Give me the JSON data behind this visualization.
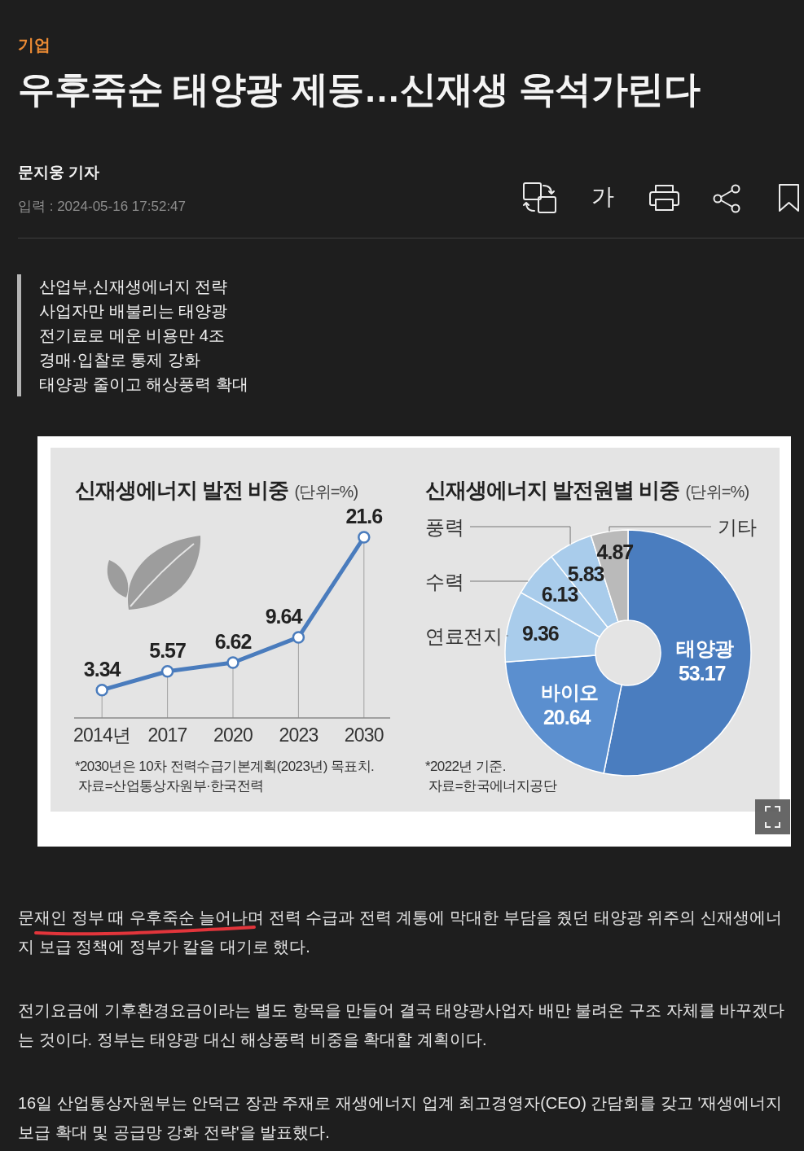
{
  "chart_data": [
    {
      "type": "other",
      "title": "우후죽순 태양광 제동…신재생 옥석가린다",
      "annotations": [
        "기업",
        "문지웅 기자",
        "입력 : 2024-05-16 17:52:47",
        "가"
      ]
    },
    {
      "type": "other",
      "annotations": [
        "산업부,신재생에너지 전략",
        "사업자만 배불리는 태양광",
        "전기료로 메운 비용만 4조",
        "경매·입찰로 통제 강화",
        "태양광 줄이고 해상풍력 확대"
      ]
    },
    {
      "type": "line",
      "title": "신재생에너지 발전 비중",
      "subtitle": "(단위=%)",
      "categories": [
        "2014년",
        "2017",
        "2020",
        "2023",
        "2030"
      ],
      "values": [
        3.34,
        5.57,
        6.62,
        9.64,
        21.6
      ],
      "color": "#4a7cbd",
      "marker": "circle",
      "data_labels": true,
      "grid": "x",
      "annotations": [
        "*2030년은 10차 전력수급기본계획(2023년) 목표치.",
        "자료=산업통상자원부·한국전력"
      ]
    },
    {
      "type": "donut",
      "title": "신재생에너지 발전원별 비중",
      "subtitle": "(단위=%)",
      "categories": [
        "태양광",
        "바이오",
        "연료전지",
        "수력",
        "풍력",
        "기타"
      ],
      "values": [
        53.17,
        20.64,
        9.36,
        6.13,
        5.83,
        4.87
      ],
      "colors": [
        "#4a7dbf",
        "#5b8fcf",
        "#a9cceb",
        "#a9cceb",
        "#a9cceb",
        "#bababa"
      ],
      "data_labels": true,
      "annotations": [
        "*2022년 기준.",
        "자료=한국에너지공단"
      ]
    },
    {
      "type": "other",
      "annotations": [
        "문재인 정부 때 우후죽순 늘어나며 전력 수급과 전력 계통에 막대한 부담을 줬던 태양광 위주의 신재생에너지 보급 정책에 정부가 칼을 대기로 했다.",
        "전기요금에 기후환경요금이라는 별도 항목을 만들어 결국 태양광사업자 배만 불려온 구조 자체를 바꾸겠다는 것이다. 정부는 태양광 대신 해상풍력 비중을 확대할 계획이다.",
        "16일 산업통상자원부는 안덕근 장관 주재로 재생에너지 업계 최고경영자(CEO) 간담회를 갖고 '재생에너지 보급 확대 및 공급망 강화 전략'을 발표했다."
      ]
    }
  ]
}
